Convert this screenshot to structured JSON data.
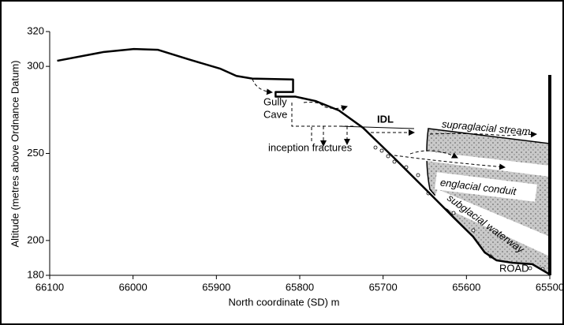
{
  "chart_data": {
    "type": "line",
    "x_label": "North coordinate (SD) m",
    "y_label": "Altitude (metres above Ordnance Datum)",
    "x": [
      66091,
      66036,
      65999,
      65970,
      65933,
      65895,
      65876,
      65857,
      65808,
      65808,
      65829,
      65829,
      65805,
      65781,
      65753,
      65724,
      65687,
      65649,
      65616,
      65592,
      65578,
      65564,
      65545,
      65521,
      65500
    ],
    "series": [
      {
        "color": "#000000",
        "values": [
          303.2,
          308.2,
          310,
          309.5,
          304,
          298.6,
          294.5,
          293,
          292.5,
          285.3,
          285.3,
          282.6,
          282.6,
          280.1,
          274.7,
          264.7,
          247.5,
          229.4,
          213.5,
          202.2,
          193.1,
          188.6,
          187.2,
          186.4,
          180.5
        ]
      }
    ],
    "xlim": [
      66100,
      65500
    ],
    "xticks": [
      66100,
      66000,
      65900,
      65800,
      65700,
      65600,
      65500
    ],
    "ylim": [
      180,
      320
    ],
    "yticks": [
      180,
      200,
      250,
      300,
      320
    ],
    "annotations": [
      "Gully",
      "Cave",
      "IDL",
      "supraglacial stream",
      "inception fractures",
      "englacial conduit",
      "subglacial waterway",
      "ROAD"
    ]
  }
}
